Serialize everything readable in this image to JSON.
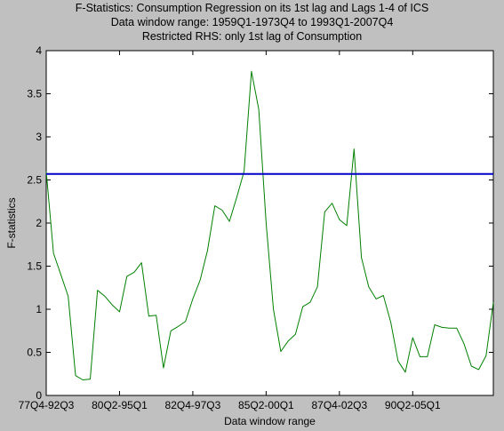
{
  "chart_data": {
    "type": "line",
    "title": [
      "F-Statistics: Consumption Regression on its 1st lag and Lags 1-4 of ICS",
      "Data window range: 1959Q1-1973Q4 to 1993Q1-2007Q4",
      "Restricted RHS: only 1st lag of Consumption"
    ],
    "xlabel": "Data window range",
    "ylabel": "F-statistics",
    "xtick_labels": [
      "77Q4-92Q3",
      "80Q2-95Q1",
      "82Q4-97Q3",
      "85Q2-00Q1",
      "87Q4-02Q3",
      "90Q2-05Q1"
    ],
    "xtick_positions": [
      1,
      11,
      21,
      31,
      41,
      51
    ],
    "xlim": [
      1,
      62
    ],
    "ylim": [
      0,
      4
    ],
    "yticks": [
      0,
      0.5,
      1,
      1.5,
      2,
      2.5,
      3,
      3.5,
      4
    ],
    "yticks_label": [
      "0",
      "0.5",
      "1",
      "1.5",
      "2",
      "2.5",
      "3",
      "3.5",
      "4"
    ],
    "grid": false,
    "series": [
      {
        "color": "#008000",
        "x": [
          1,
          2,
          3,
          4,
          5,
          6,
          7,
          8,
          9,
          10,
          11,
          12,
          13,
          14,
          15,
          16,
          17,
          18,
          19,
          20,
          21,
          22,
          23,
          24,
          25,
          26,
          27,
          28,
          29,
          30,
          31,
          32,
          33,
          34,
          35,
          36,
          37,
          38,
          39,
          40,
          41,
          42,
          43,
          44,
          45,
          46,
          47,
          48,
          49,
          50,
          51,
          52,
          53,
          54,
          55,
          56,
          57,
          58,
          59,
          60,
          61,
          62
        ],
        "values": [
          2.6,
          1.65,
          1.4,
          1.15,
          0.23,
          0.18,
          0.19,
          1.22,
          1.15,
          1.05,
          0.97,
          1.38,
          1.43,
          1.54,
          0.92,
          0.93,
          0.32,
          0.75,
          0.8,
          0.86,
          1.12,
          1.34,
          1.68,
          2.2,
          2.15,
          2.02,
          2.3,
          2.6,
          3.76,
          3.32,
          2.0,
          1.0,
          0.51,
          0.63,
          0.71,
          1.03,
          1.08,
          1.26,
          2.13,
          2.23,
          2.04,
          1.97,
          2.86,
          1.6,
          1.26,
          1.12,
          1.16,
          0.85,
          0.4,
          0.27,
          0.67,
          0.45,
          0.45,
          0.82,
          0.79,
          0.78,
          0.78,
          0.6,
          0.34,
          0.3,
          0.46,
          1.08
        ]
      },
      {
        "color": "#0000c8",
        "x": [
          1,
          62
        ],
        "values": [
          2.57,
          2.57
        ]
      }
    ]
  }
}
